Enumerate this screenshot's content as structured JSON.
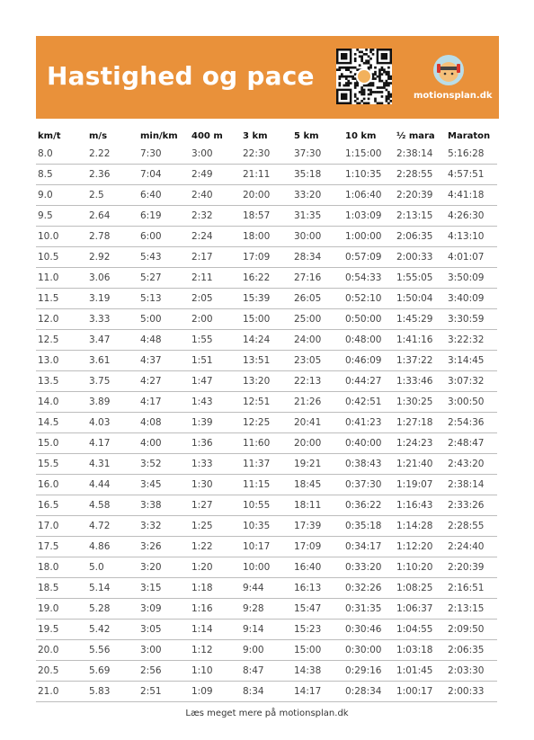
{
  "header": {
    "title": "Hastighed og pace",
    "brand": "motionsplan.dk",
    "colors": {
      "accent": "#e9913a",
      "text_on_accent": "#ffffff"
    },
    "qr_icon": "qr-code-icon",
    "logo_icon": "motionsplan-logo-icon"
  },
  "table": {
    "columns": [
      "km/t",
      "m/s",
      "min/km",
      "400 m",
      "3 km",
      "5 km",
      "10 km",
      "½ mara",
      "Maraton"
    ],
    "rows": [
      [
        "8.0",
        "2.22",
        "7:30",
        "3:00",
        "22:30",
        "37:30",
        "1:15:00",
        "2:38:14",
        "5:16:28"
      ],
      [
        "8.5",
        "2.36",
        "7:04",
        "2:49",
        "21:11",
        "35:18",
        "1:10:35",
        "2:28:55",
        "4:57:51"
      ],
      [
        "9.0",
        "2.5",
        "6:40",
        "2:40",
        "20:00",
        "33:20",
        "1:06:40",
        "2:20:39",
        "4:41:18"
      ],
      [
        "9.5",
        "2.64",
        "6:19",
        "2:32",
        "18:57",
        "31:35",
        "1:03:09",
        "2:13:15",
        "4:26:30"
      ],
      [
        "10.0",
        "2.78",
        "6:00",
        "2:24",
        "18:00",
        "30:00",
        "1:00:00",
        "2:06:35",
        "4:13:10"
      ],
      [
        "10.5",
        "2.92",
        "5:43",
        "2:17",
        "17:09",
        "28:34",
        "0:57:09",
        "2:00:33",
        "4:01:07"
      ],
      [
        "11.0",
        "3.06",
        "5:27",
        "2:11",
        "16:22",
        "27:16",
        "0:54:33",
        "1:55:05",
        "3:50:09"
      ],
      [
        "11.5",
        "3.19",
        "5:13",
        "2:05",
        "15:39",
        "26:05",
        "0:52:10",
        "1:50:04",
        "3:40:09"
      ],
      [
        "12.0",
        "3.33",
        "5:00",
        "2:00",
        "15:00",
        "25:00",
        "0:50:00",
        "1:45:29",
        "3:30:59"
      ],
      [
        "12.5",
        "3.47",
        "4:48",
        "1:55",
        "14:24",
        "24:00",
        "0:48:00",
        "1:41:16",
        "3:22:32"
      ],
      [
        "13.0",
        "3.61",
        "4:37",
        "1:51",
        "13:51",
        "23:05",
        "0:46:09",
        "1:37:22",
        "3:14:45"
      ],
      [
        "13.5",
        "3.75",
        "4:27",
        "1:47",
        "13:20",
        "22:13",
        "0:44:27",
        "1:33:46",
        "3:07:32"
      ],
      [
        "14.0",
        "3.89",
        "4:17",
        "1:43",
        "12:51",
        "21:26",
        "0:42:51",
        "1:30:25",
        "3:00:50"
      ],
      [
        "14.5",
        "4.03",
        "4:08",
        "1:39",
        "12:25",
        "20:41",
        "0:41:23",
        "1:27:18",
        "2:54:36"
      ],
      [
        "15.0",
        "4.17",
        "4:00",
        "1:36",
        "11:60",
        "20:00",
        "0:40:00",
        "1:24:23",
        "2:48:47"
      ],
      [
        "15.5",
        "4.31",
        "3:52",
        "1:33",
        "11:37",
        "19:21",
        "0:38:43",
        "1:21:40",
        "2:43:20"
      ],
      [
        "16.0",
        "4.44",
        "3:45",
        "1:30",
        "11:15",
        "18:45",
        "0:37:30",
        "1:19:07",
        "2:38:14"
      ],
      [
        "16.5",
        "4.58",
        "3:38",
        "1:27",
        "10:55",
        "18:11",
        "0:36:22",
        "1:16:43",
        "2:33:26"
      ],
      [
        "17.0",
        "4.72",
        "3:32",
        "1:25",
        "10:35",
        "17:39",
        "0:35:18",
        "1:14:28",
        "2:28:55"
      ],
      [
        "17.5",
        "4.86",
        "3:26",
        "1:22",
        "10:17",
        "17:09",
        "0:34:17",
        "1:12:20",
        "2:24:40"
      ],
      [
        "18.0",
        "5.0",
        "3:20",
        "1:20",
        "10:00",
        "16:40",
        "0:33:20",
        "1:10:20",
        "2:20:39"
      ],
      [
        "18.5",
        "5.14",
        "3:15",
        "1:18",
        "9:44",
        "16:13",
        "0:32:26",
        "1:08:25",
        "2:16:51"
      ],
      [
        "19.0",
        "5.28",
        "3:09",
        "1:16",
        "9:28",
        "15:47",
        "0:31:35",
        "1:06:37",
        "2:13:15"
      ],
      [
        "19.5",
        "5.42",
        "3:05",
        "1:14",
        "9:14",
        "15:23",
        "0:30:46",
        "1:04:55",
        "2:09:50"
      ],
      [
        "20.0",
        "5.56",
        "3:00",
        "1:12",
        "9:00",
        "15:00",
        "0:30:00",
        "1:03:18",
        "2:06:35"
      ],
      [
        "20.5",
        "5.69",
        "2:56",
        "1:10",
        "8:47",
        "14:38",
        "0:29:16",
        "1:01:45",
        "2:03:30"
      ],
      [
        "21.0",
        "5.83",
        "2:51",
        "1:09",
        "8:34",
        "14:17",
        "0:28:34",
        "1:00:17",
        "2:00:33"
      ]
    ]
  },
  "footer": {
    "text": "Læs meget mere på motionsplan.dk"
  }
}
